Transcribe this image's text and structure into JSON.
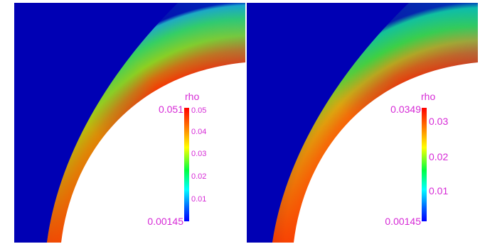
{
  "panels": [
    {
      "colorbar": {
        "title": "rho",
        "max_label": "0.051",
        "min_label": "0.00145",
        "ticks": [
          "0.05",
          "0.04",
          "0.03",
          "0.02",
          "0.01"
        ]
      }
    },
    {
      "colorbar": {
        "title": "rho",
        "max_label": "0.0349",
        "min_label": "0.00145",
        "ticks": [
          "0.03",
          "0.02",
          "0.01"
        ]
      }
    }
  ],
  "colors": {
    "freestream": "#0000b4",
    "body": "#ffffff",
    "label": "#d629d6"
  }
}
